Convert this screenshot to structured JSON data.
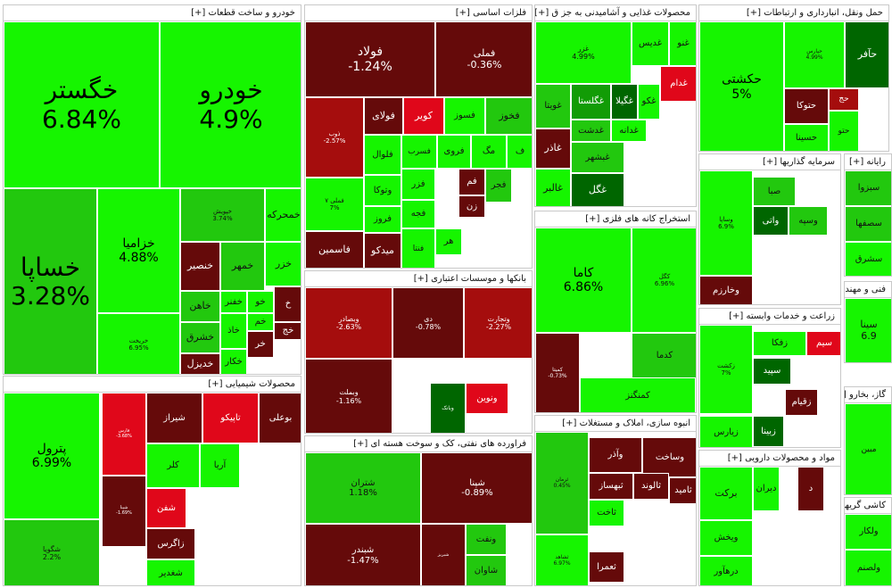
{
  "colors": {
    "bright_green": "#16f500",
    "green": "#22c80e",
    "mid_green": "#129c06",
    "dark_green": "#006600",
    "dark_red": "#650a0a",
    "red": "#a50d0d",
    "bright_red": "#e0071a",
    "neutral": "#3a2a10"
  },
  "sectors": [
    {
      "title": "خودرو و ساخت قطعات [+]",
      "tiles": [
        {
          "sym": "خگستر",
          "pct": "6.84%"
        },
        {
          "sym": "خودرو",
          "pct": "4.9%"
        },
        {
          "sym": "خساپا",
          "pct": "3.28%"
        },
        {
          "sym": "خزامیا",
          "pct": "4.88%"
        },
        {
          "sym": "خریخت",
          "pct": "6.95%"
        },
        {
          "sym": "خپویش",
          "pct": "3.74%"
        },
        {
          "sym": "خمحرکه",
          "pct": ""
        },
        {
          "sym": "خزر",
          "pct": ""
        },
        {
          "sym": "خنصیر",
          "pct": ""
        },
        {
          "sym": "خمهر",
          "pct": ""
        },
        {
          "sym": "خاهن",
          "pct": ""
        },
        {
          "sym": "خفنر",
          "pct": ""
        },
        {
          "sym": "خو",
          "pct": ""
        },
        {
          "sym": "خ",
          "pct": ""
        },
        {
          "sym": "خشرق",
          "pct": ""
        },
        {
          "sym": "خاذ",
          "pct": ""
        },
        {
          "sym": "خم",
          "pct": ""
        },
        {
          "sym": "خج",
          "pct": ""
        },
        {
          "sym": "خدیزل",
          "pct": ""
        },
        {
          "sym": "خکار",
          "pct": ""
        },
        {
          "sym": "خر",
          "pct": ""
        }
      ]
    },
    {
      "title": "فلزات اساسی [+]",
      "tiles": [
        {
          "sym": "فولاد",
          "pct": "-1.24%"
        },
        {
          "sym": "فملی",
          "pct": "-0.36%"
        },
        {
          "sym": "ذوب",
          "pct": "-2.57%"
        },
        {
          "sym": "فولای",
          "pct": ""
        },
        {
          "sym": "کویر",
          "pct": ""
        },
        {
          "sym": "فسوز",
          "pct": ""
        },
        {
          "sym": "فخوز",
          "pct": ""
        },
        {
          "sym": "فسرب",
          "pct": ""
        },
        {
          "sym": "فلوال",
          "pct": ""
        },
        {
          "sym": "فروی",
          "pct": ""
        },
        {
          "sym": "مگ",
          "pct": ""
        },
        {
          "sym": "ف",
          "pct": ""
        },
        {
          "sym": "فجر",
          "pct": ""
        },
        {
          "sym": "فملی ۷",
          "pct": "7%"
        },
        {
          "sym": "وتوکا",
          "pct": ""
        },
        {
          "sym": "فزر",
          "pct": ""
        },
        {
          "sym": "فروز",
          "pct": ""
        },
        {
          "sym": "فجه",
          "pct": ""
        },
        {
          "sym": "فاسمین",
          "pct": ""
        },
        {
          "sym": "میدکو",
          "pct": ""
        },
        {
          "sym": "فنتا",
          "pct": ""
        },
        {
          "sym": "فم",
          "pct": ""
        },
        {
          "sym": "زن",
          "pct": ""
        },
        {
          "sym": "هر",
          "pct": ""
        }
      ]
    },
    {
      "title": "محصولات غذایی و آشامیدنی به جز ق [+]",
      "tiles": [
        {
          "sym": "غزر",
          "pct": "4.99%"
        },
        {
          "sym": "غدیس",
          "pct": ""
        },
        {
          "sym": "غنو",
          "pct": ""
        },
        {
          "sym": "غویتا",
          "pct": ""
        },
        {
          "sym": "غگلستا",
          "pct": ""
        },
        {
          "sym": "غگیلا",
          "pct": ""
        },
        {
          "sym": "غکو",
          "pct": ""
        },
        {
          "sym": "غدام",
          "pct": ""
        },
        {
          "sym": "غدشت",
          "pct": ""
        },
        {
          "sym": "غدانه",
          "pct": ""
        },
        {
          "sym": "غاذر",
          "pct": ""
        },
        {
          "sym": "غبشهر",
          "pct": ""
        },
        {
          "sym": "غگل",
          "pct": ""
        },
        {
          "sym": "غالبر",
          "pct": ""
        }
      ]
    },
    {
      "title": "حمل ونقل، انبارداری و ارتباطات [+]",
      "tiles": [
        {
          "sym": "حکشتی",
          "pct": "5%"
        },
        {
          "sym": "حآفر",
          "pct": ""
        },
        {
          "sym": "حتوکا",
          "pct": ""
        },
        {
          "sym": "حسینا",
          "pct": ""
        },
        {
          "sym": "حپارس",
          "pct": "4.99%"
        },
        {
          "sym": "حج",
          "pct": ""
        },
        {
          "sym": "حتو",
          "pct": ""
        }
      ]
    },
    {
      "title": "استخراج کانه های فلزی [+]",
      "tiles": [
        {
          "sym": "کاما",
          "pct": "6.86%"
        },
        {
          "sym": "کگل",
          "pct": "6.96%"
        },
        {
          "sym": "کمیتا",
          "pct": "-0.73%"
        },
        {
          "sym": "کدما",
          "pct": ""
        },
        {
          "sym": "کمنگنز",
          "pct": ""
        }
      ]
    },
    {
      "title": "سرمایه گذاریها [+]",
      "tiles": [
        {
          "sym": "وساپا",
          "pct": "6.9%"
        },
        {
          "sym": "وخارزم",
          "pct": ""
        },
        {
          "sym": "صبا",
          "pct": ""
        },
        {
          "sym": "وسپه",
          "pct": ""
        },
        {
          "sym": "واتی",
          "pct": ""
        }
      ]
    },
    {
      "title": "بانکها و موسسات اعتباری [+]",
      "tiles": [
        {
          "sym": "وبصادر",
          "pct": "-2.63%"
        },
        {
          "sym": "دی",
          "pct": "-0.78%"
        },
        {
          "sym": "وتجارت",
          "pct": "-2.27%"
        },
        {
          "sym": "وبملت",
          "pct": "-1.16%"
        },
        {
          "sym": "وبانک",
          "pct": ""
        },
        {
          "sym": "ونوین",
          "pct": ""
        }
      ]
    },
    {
      "title": "زراعت و خدمات وابسته [+]",
      "tiles": [
        {
          "sym": "زکشت",
          "pct": "7%"
        },
        {
          "sym": "زفکا",
          "pct": ""
        },
        {
          "sym": "سیم",
          "pct": ""
        },
        {
          "sym": "سپید",
          "pct": ""
        },
        {
          "sym": "زقیام",
          "pct": ""
        },
        {
          "sym": "زبینا",
          "pct": ""
        },
        {
          "sym": "زیارس",
          "pct": ""
        }
      ]
    },
    {
      "title": "محصولات شیمیایی [+]",
      "tiles": [
        {
          "sym": "پترول",
          "pct": "6.99%"
        },
        {
          "sym": "شگویا",
          "pct": "2.2%"
        },
        {
          "sym": "شیراز",
          "pct": ""
        },
        {
          "sym": "تاپیکو",
          "pct": ""
        },
        {
          "sym": "بوعلی",
          "pct": ""
        },
        {
          "sym": "آریا",
          "pct": ""
        },
        {
          "sym": "کلر",
          "pct": ""
        },
        {
          "sym": "شفن",
          "pct": ""
        },
        {
          "sym": "زاگرس",
          "pct": ""
        },
        {
          "sym": "شغدیر",
          "pct": ""
        },
        {
          "sym": "فارس",
          "pct": "-3.68%"
        },
        {
          "sym": "شپنا",
          "pct": "-1.69%"
        }
      ]
    },
    {
      "title": "فراورده های نفتی، کک و سوخت هسته ای [+]",
      "tiles": [
        {
          "sym": "شتران",
          "pct": "1.18%"
        },
        {
          "sym": "شپنا",
          "pct": "-0.89%"
        },
        {
          "sym": "شبندر",
          "pct": "-1.47%"
        },
        {
          "sym": "شبریز",
          "pct": ""
        },
        {
          "sym": "ونفت",
          "pct": ""
        },
        {
          "sym": "شاوان",
          "pct": ""
        }
      ]
    },
    {
      "title": "انبوه سازی، املاک و مستغلات [+]",
      "tiles": [
        {
          "sym": "ثرمان",
          "pct": "0.45%"
        },
        {
          "sym": "وآذر",
          "pct": ""
        },
        {
          "sym": "وساخت",
          "pct": ""
        },
        {
          "sym": "ثبهساز",
          "pct": ""
        },
        {
          "sym": "ثالوند",
          "pct": ""
        },
        {
          "sym": "ثامید",
          "pct": ""
        },
        {
          "sym": "ثاخت",
          "pct": ""
        },
        {
          "sym": "ثعمرا",
          "pct": ""
        },
        {
          "sym": "ثشاهد",
          "pct": "6.97%"
        }
      ]
    },
    {
      "title": "مواد و محصولات دارویی [+]",
      "tiles": [
        {
          "sym": "برکت",
          "pct": ""
        },
        {
          "sym": "دیران",
          "pct": ""
        },
        {
          "sym": "ویخش",
          "pct": ""
        },
        {
          "sym": "درهآور",
          "pct": ""
        },
        {
          "sym": "د",
          "pct": ""
        }
      ]
    },
    {
      "title": "فنی و مهندسی [+]",
      "tiles": [
        {
          "sym": "سینا",
          "pct": "6.9"
        }
      ]
    },
    {
      "title": "گاز، بخارو [+]",
      "tiles": [
        {
          "sym": "مبین",
          "pct": ""
        }
      ]
    },
    {
      "title": "رایانه [+]",
      "tiles": [
        {
          "sym": "سبزوا",
          "pct": ""
        },
        {
          "sym": "سصفها",
          "pct": ""
        },
        {
          "sym": "سشرق",
          "pct": ""
        }
      ]
    },
    {
      "title": "کاشی گریهای [+]",
      "tiles": [
        {
          "sym": "ولکار",
          "pct": ""
        },
        {
          "sym": "ولصنم",
          "pct": ""
        }
      ]
    }
  ]
}
